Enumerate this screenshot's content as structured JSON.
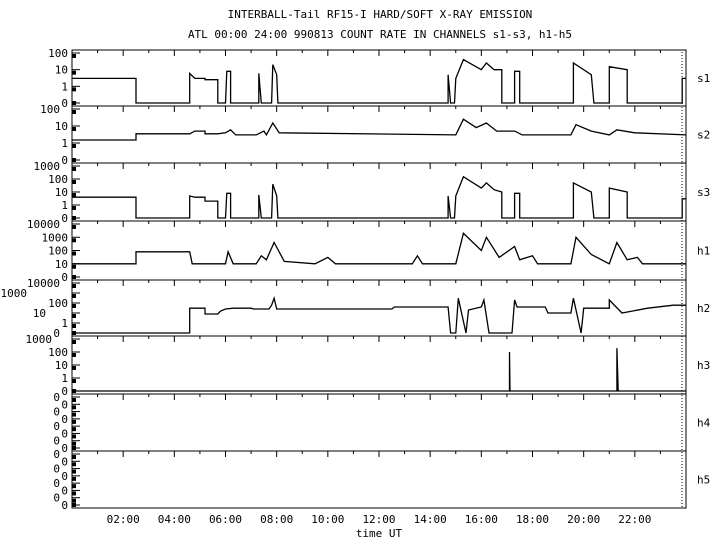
{
  "chart_data": {
    "type": "line",
    "title": "INTERBALL-Tail RF15-I HARD/SOFT X-RAY EMISSION",
    "subtitle": "ATL 00:00 24:00 990813  COUNT RATE IN CHANNELS s1-s3, h1-h5",
    "xlabel": "time UT",
    "xlim_hours": [
      0,
      24
    ],
    "x_tick_labels": [
      "02:00",
      "04:00",
      "06:00",
      "08:00",
      "10:00",
      "12:00",
      "14:00",
      "16:00",
      "18:00",
      "20:00",
      "22:00"
    ],
    "y_scale": "log",
    "panels": [
      {
        "name": "s1",
        "ytick_labels": [
          "100",
          "10",
          "1",
          "0"
        ],
        "points": [
          [
            0,
            3
          ],
          [
            2.5,
            3
          ],
          [
            2.5,
            0
          ],
          [
            4.6,
            0
          ],
          [
            4.6,
            6
          ],
          [
            4.8,
            3
          ],
          [
            5.2,
            3
          ],
          [
            5.2,
            2.5
          ],
          [
            5.7,
            2.5
          ],
          [
            5.7,
            0
          ],
          [
            6.0,
            0
          ],
          [
            6.05,
            8
          ],
          [
            6.2,
            8
          ],
          [
            6.2,
            0
          ],
          [
            7.3,
            0
          ],
          [
            7.3,
            6
          ],
          [
            7.4,
            0
          ],
          [
            7.8,
            0
          ],
          [
            7.85,
            20
          ],
          [
            8.0,
            5
          ],
          [
            8.05,
            0
          ],
          [
            14.7,
            0
          ],
          [
            14.7,
            5
          ],
          [
            14.8,
            0
          ],
          [
            14.95,
            0
          ],
          [
            15.0,
            3
          ],
          [
            15.3,
            40
          ],
          [
            16.0,
            10
          ],
          [
            16.2,
            25
          ],
          [
            16.5,
            10
          ],
          [
            16.8,
            10
          ],
          [
            16.8,
            0
          ],
          [
            17.3,
            0
          ],
          [
            17.3,
            8
          ],
          [
            17.5,
            8
          ],
          [
            17.5,
            0
          ],
          [
            19.6,
            0
          ],
          [
            19.6,
            25
          ],
          [
            20.3,
            5
          ],
          [
            20.4,
            0
          ],
          [
            21.0,
            0
          ],
          [
            21.0,
            15
          ],
          [
            21.7,
            10
          ],
          [
            21.7,
            0
          ],
          [
            23.85,
            0
          ],
          [
            23.85,
            3
          ],
          [
            24,
            3
          ]
        ]
      },
      {
        "name": "s2",
        "ytick_labels": [
          "100",
          "10",
          "1",
          "0"
        ],
        "points": [
          [
            0,
            1.5
          ],
          [
            2.5,
            1.5
          ],
          [
            2.5,
            3.5
          ],
          [
            4.6,
            3.5
          ],
          [
            4.8,
            5
          ],
          [
            5.2,
            5
          ],
          [
            5.2,
            3.5
          ],
          [
            5.7,
            3.5
          ],
          [
            6.0,
            4
          ],
          [
            6.2,
            6
          ],
          [
            6.4,
            3
          ],
          [
            7.2,
            3
          ],
          [
            7.5,
            5
          ],
          [
            7.6,
            3
          ],
          [
            7.85,
            15
          ],
          [
            8.1,
            4
          ],
          [
            15.0,
            3
          ],
          [
            15.3,
            25
          ],
          [
            15.8,
            8
          ],
          [
            16.2,
            15
          ],
          [
            16.6,
            5
          ],
          [
            17.3,
            5
          ],
          [
            17.6,
            3
          ],
          [
            19.5,
            3
          ],
          [
            19.7,
            12
          ],
          [
            20.3,
            5
          ],
          [
            21.0,
            3
          ],
          [
            21.3,
            6
          ],
          [
            22,
            4
          ],
          [
            24,
            3
          ]
        ]
      },
      {
        "name": "s3",
        "ytick_labels": [
          "1000",
          "100",
          "10",
          "1",
          "0"
        ],
        "points": [
          [
            0,
            4
          ],
          [
            2.5,
            4
          ],
          [
            2.5,
            0
          ],
          [
            4.6,
            0
          ],
          [
            4.6,
            5
          ],
          [
            4.8,
            4
          ],
          [
            5.2,
            4
          ],
          [
            5.2,
            2
          ],
          [
            5.7,
            2
          ],
          [
            5.7,
            0
          ],
          [
            6.0,
            0
          ],
          [
            6.05,
            8
          ],
          [
            6.2,
            8
          ],
          [
            6.2,
            0
          ],
          [
            7.3,
            0
          ],
          [
            7.3,
            6
          ],
          [
            7.4,
            0
          ],
          [
            7.8,
            0
          ],
          [
            7.85,
            40
          ],
          [
            8.0,
            5
          ],
          [
            8.05,
            0
          ],
          [
            14.7,
            0
          ],
          [
            14.7,
            5
          ],
          [
            14.8,
            0
          ],
          [
            14.95,
            0
          ],
          [
            15.0,
            5
          ],
          [
            15.3,
            150
          ],
          [
            16.0,
            20
          ],
          [
            16.2,
            50
          ],
          [
            16.5,
            15
          ],
          [
            16.8,
            10
          ],
          [
            16.8,
            0
          ],
          [
            17.3,
            0
          ],
          [
            17.3,
            8
          ],
          [
            17.5,
            8
          ],
          [
            17.5,
            0
          ],
          [
            19.6,
            0
          ],
          [
            19.6,
            50
          ],
          [
            20.3,
            10
          ],
          [
            20.4,
            0
          ],
          [
            21.0,
            0
          ],
          [
            21.0,
            20
          ],
          [
            21.7,
            10
          ],
          [
            21.7,
            0
          ],
          [
            23.85,
            0
          ],
          [
            23.85,
            3
          ],
          [
            24,
            3
          ]
        ]
      },
      {
        "name": "h1",
        "ytick_labels": [
          "10000",
          "1000",
          "100",
          "10",
          "0"
        ],
        "points": [
          [
            0,
            10
          ],
          [
            2.5,
            10
          ],
          [
            2.5,
            80
          ],
          [
            4.6,
            80
          ],
          [
            4.7,
            10
          ],
          [
            6.0,
            10
          ],
          [
            6.1,
            80
          ],
          [
            6.3,
            10
          ],
          [
            7.2,
            10
          ],
          [
            7.4,
            40
          ],
          [
            7.6,
            20
          ],
          [
            7.9,
            400
          ],
          [
            8.3,
            15
          ],
          [
            9.5,
            10
          ],
          [
            10,
            30
          ],
          [
            10.3,
            10
          ],
          [
            13.3,
            10
          ],
          [
            13.5,
            40
          ],
          [
            13.7,
            10
          ],
          [
            15,
            10
          ],
          [
            15.3,
            2000
          ],
          [
            16,
            100
          ],
          [
            16.2,
            1000
          ],
          [
            16.7,
            30
          ],
          [
            17.3,
            200
          ],
          [
            17.5,
            20
          ],
          [
            18,
            40
          ],
          [
            18.2,
            10
          ],
          [
            19.5,
            10
          ],
          [
            19.7,
            1000
          ],
          [
            20.3,
            50
          ],
          [
            21.0,
            10
          ],
          [
            21.3,
            400
          ],
          [
            21.7,
            20
          ],
          [
            22.1,
            30
          ],
          [
            22.3,
            10
          ],
          [
            24,
            10
          ]
        ]
      },
      {
        "name": "h2",
        "ytick_labels": [
          "10000",
          "1000",
          "100",
          "10",
          "1",
          "0"
        ],
        "points": [
          [
            0,
            0
          ],
          [
            4.6,
            0
          ],
          [
            4.6,
            30
          ],
          [
            5.2,
            30
          ],
          [
            5.2,
            8
          ],
          [
            5.7,
            8
          ],
          [
            5.8,
            15
          ],
          [
            6.0,
            25
          ],
          [
            6.3,
            30
          ],
          [
            7.0,
            30
          ],
          [
            7.1,
            25
          ],
          [
            7.7,
            25
          ],
          [
            7.8,
            60
          ],
          [
            7.9,
            300
          ],
          [
            8.0,
            25
          ],
          [
            12.5,
            25
          ],
          [
            12.6,
            40
          ],
          [
            14.7,
            40
          ],
          [
            14.8,
            0
          ],
          [
            15.0,
            0
          ],
          [
            15.1,
            300
          ],
          [
            15.4,
            0
          ],
          [
            15.5,
            20
          ],
          [
            16.0,
            40
          ],
          [
            16.1,
            200
          ],
          [
            16.3,
            0
          ],
          [
            17.2,
            0
          ],
          [
            17.3,
            200
          ],
          [
            17.4,
            40
          ],
          [
            18.5,
            40
          ],
          [
            18.6,
            10
          ],
          [
            19.5,
            10
          ],
          [
            19.6,
            300
          ],
          [
            19.9,
            0
          ],
          [
            20.0,
            30
          ],
          [
            21.0,
            30
          ],
          [
            21.0,
            200
          ],
          [
            21.5,
            10
          ],
          [
            22.5,
            30
          ],
          [
            23.5,
            60
          ],
          [
            24,
            60
          ]
        ]
      },
      {
        "name": "h3",
        "ytick_labels": [
          "1000",
          "100",
          "10",
          "1",
          "0"
        ],
        "points": [
          [
            0,
            0
          ],
          [
            17.1,
            0
          ],
          [
            17.1,
            100
          ],
          [
            17.12,
            0
          ],
          [
            21.3,
            0
          ],
          [
            21.3,
            200
          ],
          [
            21.35,
            0
          ],
          [
            24,
            0
          ]
        ]
      },
      {
        "name": "h4",
        "ytick_labels": [
          "0",
          "0",
          "0",
          "0",
          "0",
          "0",
          "0",
          "0"
        ],
        "points": []
      },
      {
        "name": "h5",
        "ytick_labels": [
          "0",
          "0",
          "0",
          "0",
          "0",
          "0",
          "0",
          "0"
        ],
        "points": []
      }
    ]
  }
}
